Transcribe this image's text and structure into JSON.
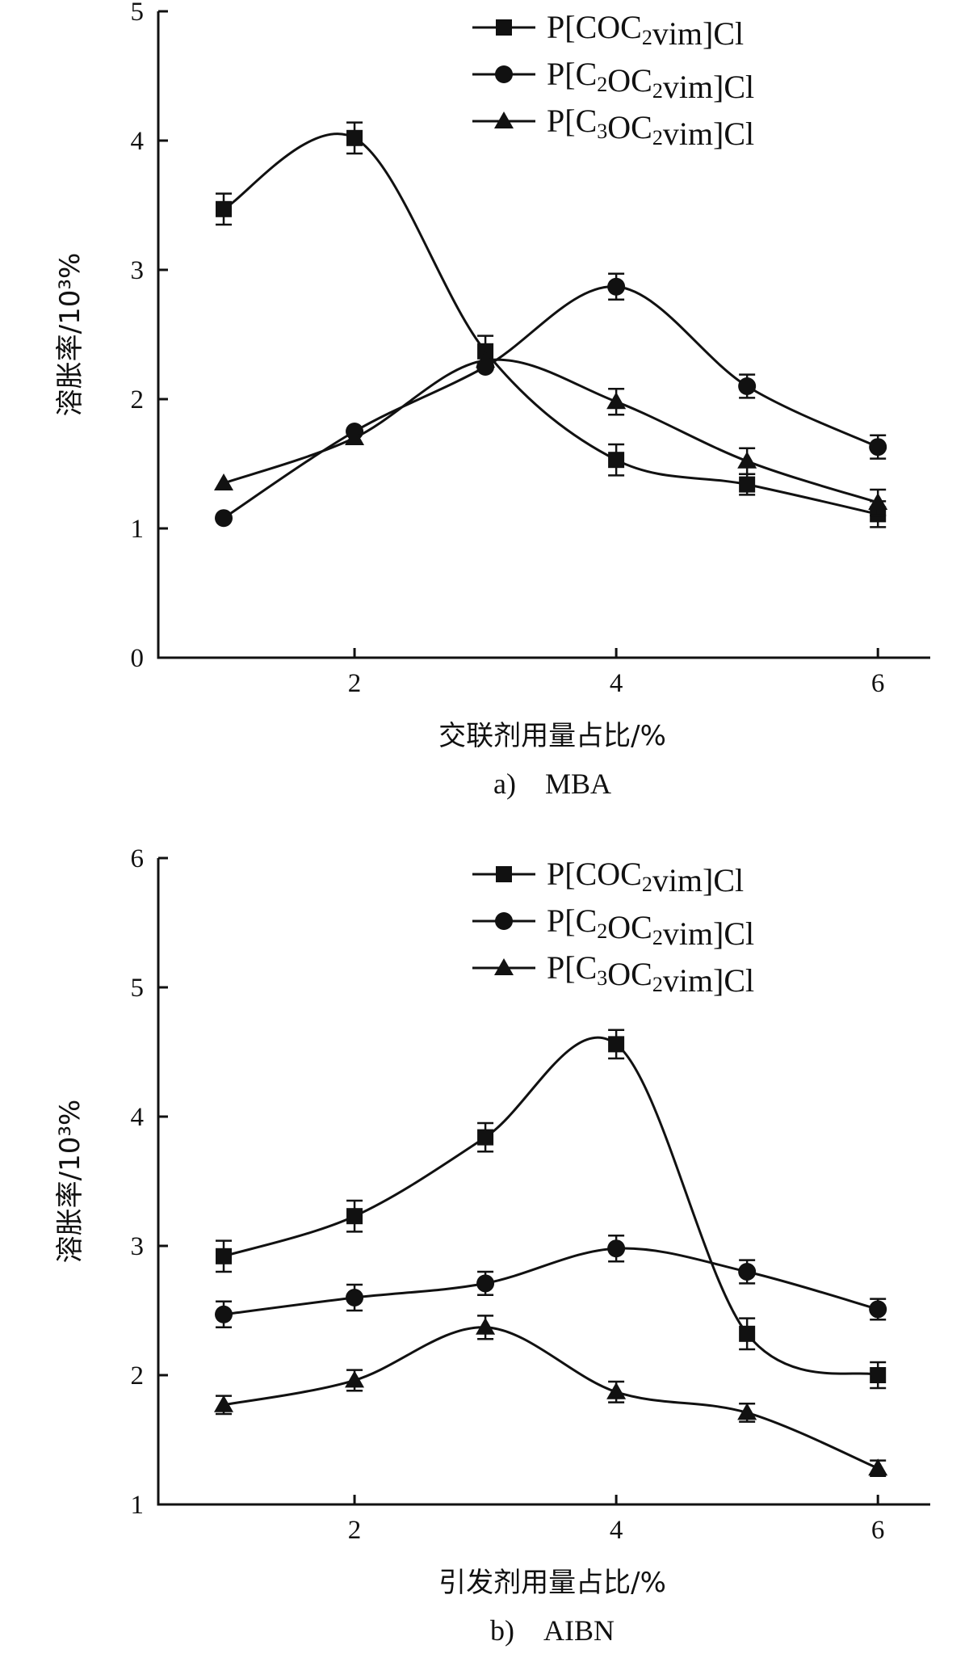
{
  "chart_data": [
    {
      "type": "line",
      "x": [
        1,
        2,
        3,
        4,
        5,
        6
      ],
      "xticks": [
        2,
        4,
        6
      ],
      "xlim": [
        0.5,
        6.4
      ],
      "yticks": [
        0,
        1,
        2,
        3,
        4,
        5
      ],
      "ylim": [
        0,
        5
      ],
      "xlabel": "交联剂用量占比/%",
      "ylabel": "溶胀率/10³%",
      "caption": "a)　MBA",
      "legend_position": "top-right",
      "series": [
        {
          "name": "P[COC₂vim]Cl",
          "marker": "square",
          "values": [
            3.47,
            4.02,
            2.37,
            1.53,
            1.34,
            1.11
          ],
          "error": [
            0.12,
            0.12,
            0.12,
            0.12,
            0.08,
            0.1
          ]
        },
        {
          "name": "P[C₂OC₂vim]Cl",
          "marker": "circle",
          "values": [
            1.08,
            1.75,
            2.25,
            2.87,
            2.1,
            1.63
          ],
          "error": [
            0.0,
            0.0,
            0.0,
            0.1,
            0.09,
            0.09
          ]
        },
        {
          "name": "P[C₃OC₂vim]Cl",
          "marker": "triangle",
          "values": [
            1.35,
            1.7,
            2.3,
            1.98,
            1.52,
            1.2
          ],
          "error": [
            0.0,
            0.0,
            0.0,
            0.1,
            0.1,
            0.1
          ]
        }
      ]
    },
    {
      "type": "line",
      "x": [
        1,
        2,
        3,
        4,
        5,
        6
      ],
      "xticks": [
        2,
        4,
        6
      ],
      "xlim": [
        0.5,
        6.4
      ],
      "yticks": [
        1,
        2,
        3,
        4,
        5,
        6
      ],
      "ylim": [
        1,
        6
      ],
      "xlabel": "引发剂用量占比/%",
      "ylabel": "溶胀率/10³%",
      "caption": "b)　AIBN",
      "legend_position": "top-right",
      "series": [
        {
          "name": "P[COC₂vim]Cl",
          "marker": "square",
          "values": [
            2.92,
            3.23,
            3.84,
            4.56,
            2.32,
            2.0
          ],
          "error": [
            0.12,
            0.12,
            0.11,
            0.11,
            0.12,
            0.1
          ]
        },
        {
          "name": "P[C₂OC₂vim]Cl",
          "marker": "circle",
          "values": [
            2.47,
            2.6,
            2.71,
            2.98,
            2.8,
            2.51
          ],
          "error": [
            0.1,
            0.1,
            0.09,
            0.1,
            0.09,
            0.08
          ]
        },
        {
          "name": "P[C₃OC₂vim]Cl",
          "marker": "triangle",
          "values": [
            1.77,
            1.96,
            2.37,
            1.87,
            1.71,
            1.28
          ],
          "error": [
            0.07,
            0.08,
            0.09,
            0.08,
            0.07,
            0.06
          ]
        }
      ]
    }
  ]
}
